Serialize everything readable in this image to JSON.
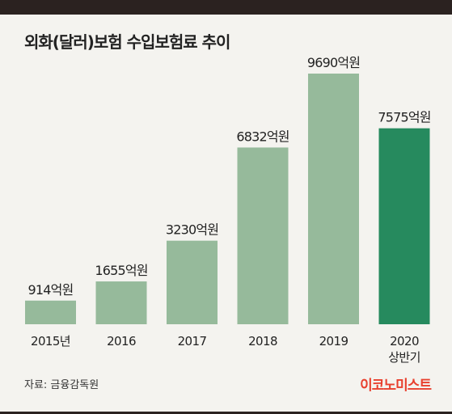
{
  "title": "외화(달러)보험 수입보험료 추이",
  "source": "자료: 금융감독원",
  "logo": "이코노미스트",
  "colors": {
    "bar": "#96ba9b",
    "highlight": "#268a5e",
    "background": "#f4f3ef",
    "logo": "#e8402e"
  },
  "chart_data": {
    "type": "bar",
    "title": "외화(달러)보험 수입보험료 추이",
    "categories": [
      "2015년",
      "2016",
      "2017",
      "2018",
      "2019",
      "2020\n상반기"
    ],
    "values": [
      914,
      1655,
      3230,
      6832,
      9690,
      7575
    ],
    "value_labels": [
      "914억원",
      "1655억원",
      "3230억원",
      "6832억원",
      "9690억원",
      "7575억원"
    ],
    "highlight_index": 5,
    "unit": "억원",
    "ylim": [
      0,
      9690
    ],
    "grid": false,
    "legend": "none"
  }
}
